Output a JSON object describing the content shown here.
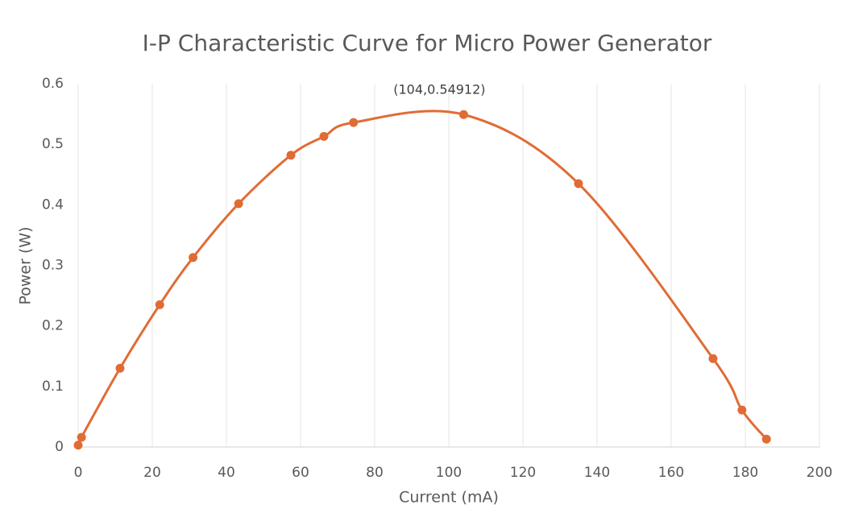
{
  "chart_data": {
    "type": "scatter",
    "title": "I-P Characteristic Curve for Micro Power Generator",
    "x_label": "Current (mA)",
    "y_label": "Power (W)",
    "series": [
      {
        "name": "Power",
        "color": "#e06c35",
        "x": [
          0,
          0.9,
          11.3,
          22,
          31,
          43.3,
          57.4,
          66.3,
          74.3,
          104,
          135,
          171.3,
          179.1,
          185.7
        ],
        "values": [
          0.003,
          0.016,
          0.13,
          0.235,
          0.313,
          0.402,
          0.482,
          0.513,
          0.536,
          0.54912,
          0.435,
          0.146,
          0.061,
          0.013
        ]
      }
    ],
    "annotation": "(104,0.54912)",
    "xlim": [
      0,
      200
    ],
    "xticks": [
      0,
      20,
      40,
      60,
      80,
      100,
      120,
      140,
      160,
      180,
      200
    ],
    "ylim": [
      0,
      0.6
    ],
    "yticks": [
      0,
      0.1,
      0.2,
      0.3,
      0.4,
      0.5,
      0.6
    ],
    "grid": true,
    "smooth": true
  }
}
